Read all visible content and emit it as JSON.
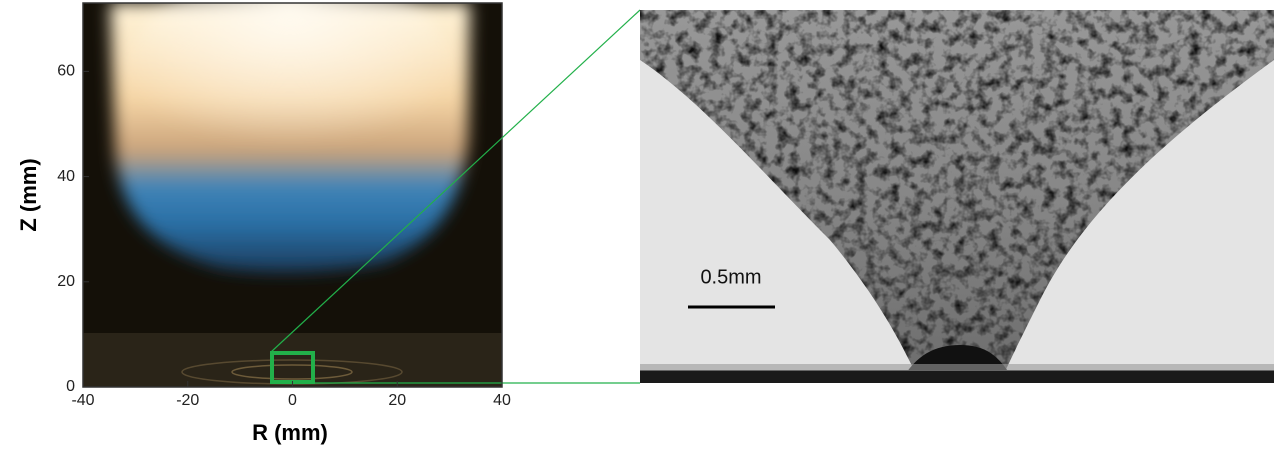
{
  "left_panel": {
    "x_label": "R (mm)",
    "y_label": "Z (mm)",
    "xlim": [
      -40,
      40
    ],
    "ylim": [
      0,
      73
    ],
    "xticks": [
      -40,
      -20,
      0,
      20,
      40
    ],
    "yticks": [
      0,
      20,
      40,
      60
    ]
  },
  "right_panel": {
    "scale_bar_label": "0.5mm"
  }
}
